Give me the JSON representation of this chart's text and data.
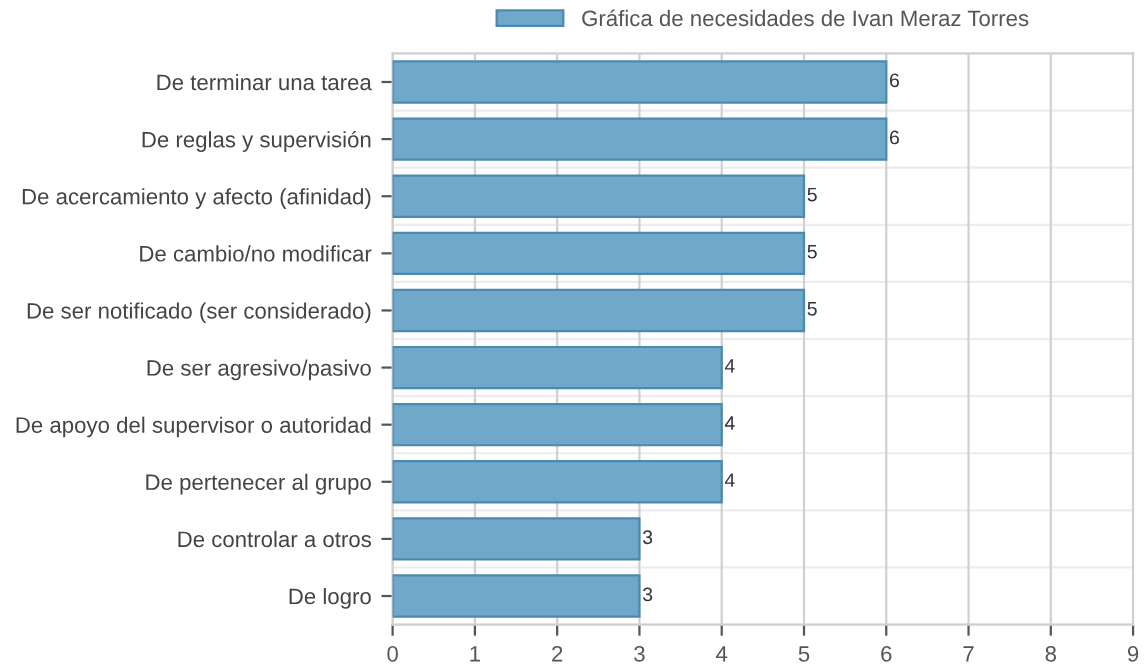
{
  "chart_data": {
    "type": "bar",
    "orientation": "horizontal",
    "categories": [
      "De terminar una tarea",
      "De reglas y supervisión",
      "De acercamiento y afecto (afinidad)",
      "De cambio/no modificar",
      "De ser notificado (ser considerado)",
      "De ser agresivo/pasivo",
      "De apoyo del supervisor o autoridad",
      "De pertenecer al grupo",
      "De controlar a otros",
      "De logro"
    ],
    "series": [
      {
        "name": "Gráfica de necesidades de Ivan Meraz Torres",
        "color": "#6fa8c8",
        "values": [
          6,
          6,
          5,
          5,
          5,
          4,
          4,
          4,
          3,
          3
        ]
      }
    ],
    "xlim": [
      0,
      9
    ],
    "xticks": [
      0,
      1,
      2,
      3,
      4,
      5,
      6,
      7,
      8,
      9
    ],
    "grid": true,
    "legend": "top",
    "data_labels": true
  }
}
